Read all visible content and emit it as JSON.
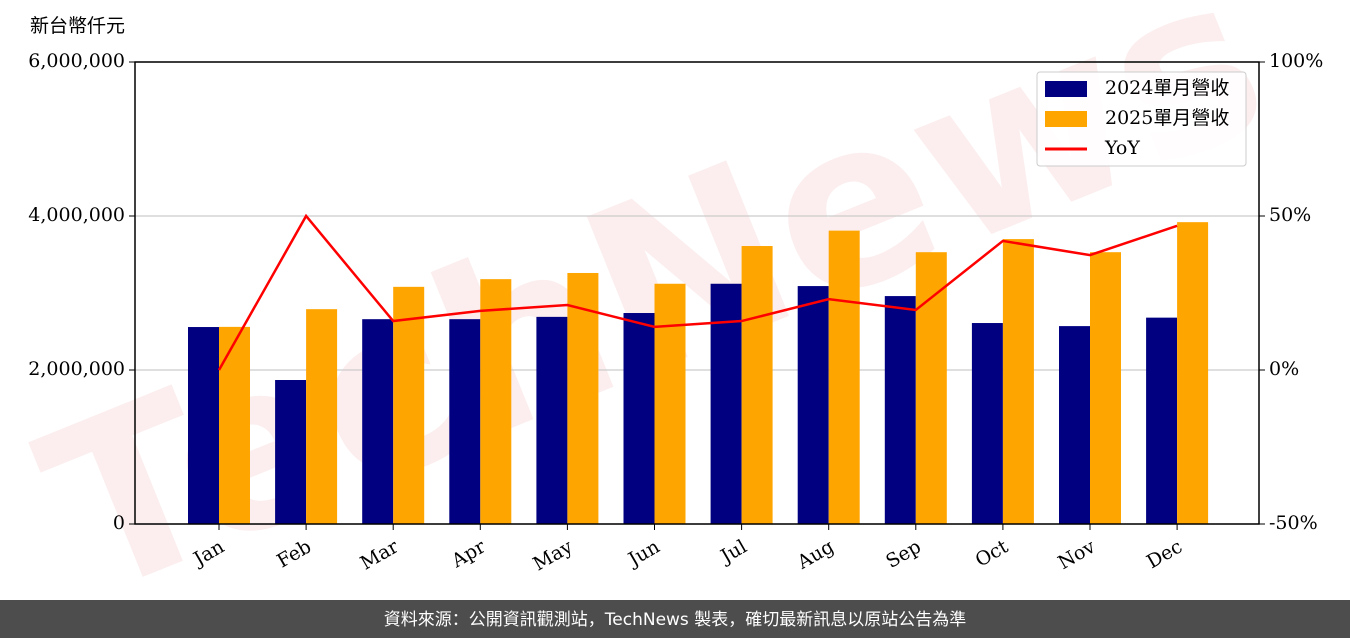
{
  "chart_data": {
    "type": "bar",
    "y_label": "新台幣仟元",
    "watermark": "TechNews",
    "footer": "資料來源：公開資訊觀測站，TechNews 製表，確切最新訊息以原站公告為準",
    "categories": [
      "Jan",
      "Feb",
      "Mar",
      "Apr",
      "May",
      "Jun",
      "Jul",
      "Aug",
      "Sep",
      "Oct",
      "Nov",
      "Dec"
    ],
    "series": [
      {
        "name": "2024單月營收",
        "color": "#000080",
        "values": [
          2558000,
          1870000,
          2660000,
          2660000,
          2690000,
          2740000,
          3120000,
          3090000,
          2960000,
          2610000,
          2570000,
          2680000
        ]
      },
      {
        "name": "2025單月營收",
        "color": "#ffa500",
        "values": [
          2560000,
          2790000,
          3080000,
          3180000,
          3260000,
          3120000,
          3610000,
          3810000,
          3530000,
          3700000,
          3530000,
          3920000
        ]
      },
      {
        "name": "YoY",
        "type": "line",
        "axis": "y2",
        "color": "#ff0000",
        "values": [
          0,
          50,
          15.9,
          19.2,
          21.1,
          14,
          15.9,
          23,
          19.5,
          41.9,
          37.3,
          46.8
        ]
      }
    ],
    "ylim": [
      0,
      6000000
    ],
    "yticks": [
      0,
      {
        "value": 2000000,
        "label": "2,000,000"
      },
      {
        "value": 4000000,
        "label": "4,000,000"
      },
      {
        "value": 6000000,
        "label": "6,000,000"
      }
    ],
    "y2lim": [
      -50,
      100
    ],
    "y2ticks": [
      {
        "value": -50,
        "label": "-50%"
      },
      {
        "value": 0,
        "label": "0%"
      },
      {
        "value": 50,
        "label": "50%"
      },
      {
        "value": 100,
        "label": "100%"
      }
    ],
    "grid": true,
    "legend": "upper right"
  }
}
